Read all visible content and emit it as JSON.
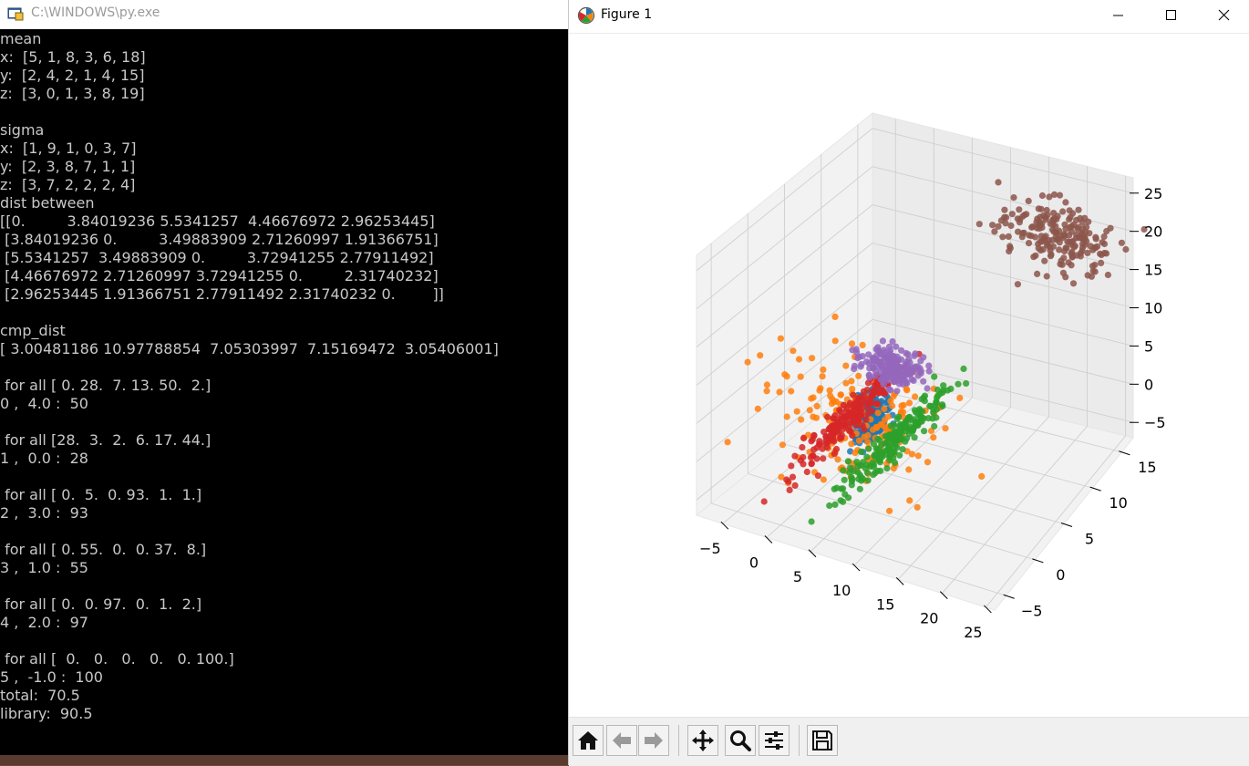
{
  "console": {
    "title": "C:\\WINDOWS\\py.exe",
    "lines": [
      "mean",
      "x:  [5, 1, 8, 3, 6, 18]",
      "y:  [2, 4, 2, 1, 4, 15]",
      "z:  [3, 0, 1, 3, 8, 19]",
      "",
      "sigma",
      "x:  [1, 9, 1, 0, 3, 7]",
      "y:  [2, 3, 8, 7, 1, 1]",
      "z:  [3, 7, 2, 2, 2, 4]",
      "dist between",
      "[[0.         3.84019236 5.5341257  4.46676972 2.96253445]",
      " [3.84019236 0.         3.49883909 2.71260997 1.91366751]",
      " [5.5341257  3.49883909 0.         3.72941255 2.77911492]",
      " [4.46676972 2.71260997 3.72941255 0.         2.31740232]",
      " [2.96253445 1.91366751 2.77911492 2.31740232 0.        ]]",
      "",
      "cmp_dist",
      "[ 3.00481186 10.97788854  7.05303997  7.15169472  3.05406001]",
      "",
      " for all [ 0. 28.  7. 13. 50.  2.]",
      "0 ,  4.0 :  50",
      "",
      " for all [28.  3.  2.  6. 17. 44.]",
      "1 ,  0.0 :  28",
      "",
      " for all [ 0.  5.  0. 93.  1.  1.]",
      "2 ,  3.0 :  93",
      "",
      " for all [ 0. 55.  0.  0. 37.  8.]",
      "3 ,  1.0 :  55",
      "",
      " for all [ 0.  0. 97.  0.  1.  2.]",
      "4 ,  2.0 :  97",
      "",
      " for all [  0.   0.   0.   0.   0. 100.]",
      "5 ,  -1.0 :  100",
      "total:  70.5",
      "library:  90.5"
    ]
  },
  "figure": {
    "title": "Figure 1",
    "window_buttons": [
      "minimize",
      "maximize",
      "close"
    ],
    "toolbar": [
      "home-icon",
      "back-icon",
      "forward-icon",
      "pan-icon",
      "zoom-icon",
      "configure-icon",
      "save-icon"
    ]
  },
  "chart_data": {
    "type": "scatter",
    "projection": "3d",
    "grid": true,
    "x_ticks": [
      "−5",
      "0",
      "5",
      "10",
      "15",
      "20",
      "25"
    ],
    "y_ticks": [
      "−5",
      "0",
      "5",
      "10",
      "15"
    ],
    "z_ticks": [
      "−5",
      "0",
      "5",
      "10",
      "15",
      "20",
      "25"
    ],
    "xlim": [
      -8,
      26
    ],
    "ylim": [
      -7,
      17
    ],
    "zlim": [
      -7,
      27
    ],
    "series": [
      {
        "color": "#1f77b4",
        "mean": [
          5,
          2,
          3
        ],
        "sigma": [
          1,
          2,
          3
        ],
        "n": 200
      },
      {
        "color": "#ff7f0e",
        "mean": [
          1,
          4,
          0
        ],
        "sigma": [
          9,
          3,
          7
        ],
        "n": 200
      },
      {
        "color": "#2ca02c",
        "mean": [
          8,
          2,
          1
        ],
        "sigma": [
          1,
          8,
          2
        ],
        "n": 200
      },
      {
        "color": "#d62728",
        "mean": [
          3,
          1,
          3
        ],
        "sigma": [
          0,
          7,
          2
        ],
        "n": 200
      },
      {
        "color": "#9467bd",
        "mean": [
          6,
          4,
          8
        ],
        "sigma": [
          3,
          1,
          2
        ],
        "n": 200
      },
      {
        "color": "#8c564b",
        "mean": [
          18,
          15,
          19
        ],
        "sigma": [
          7,
          1,
          4
        ],
        "n": 200
      }
    ]
  }
}
